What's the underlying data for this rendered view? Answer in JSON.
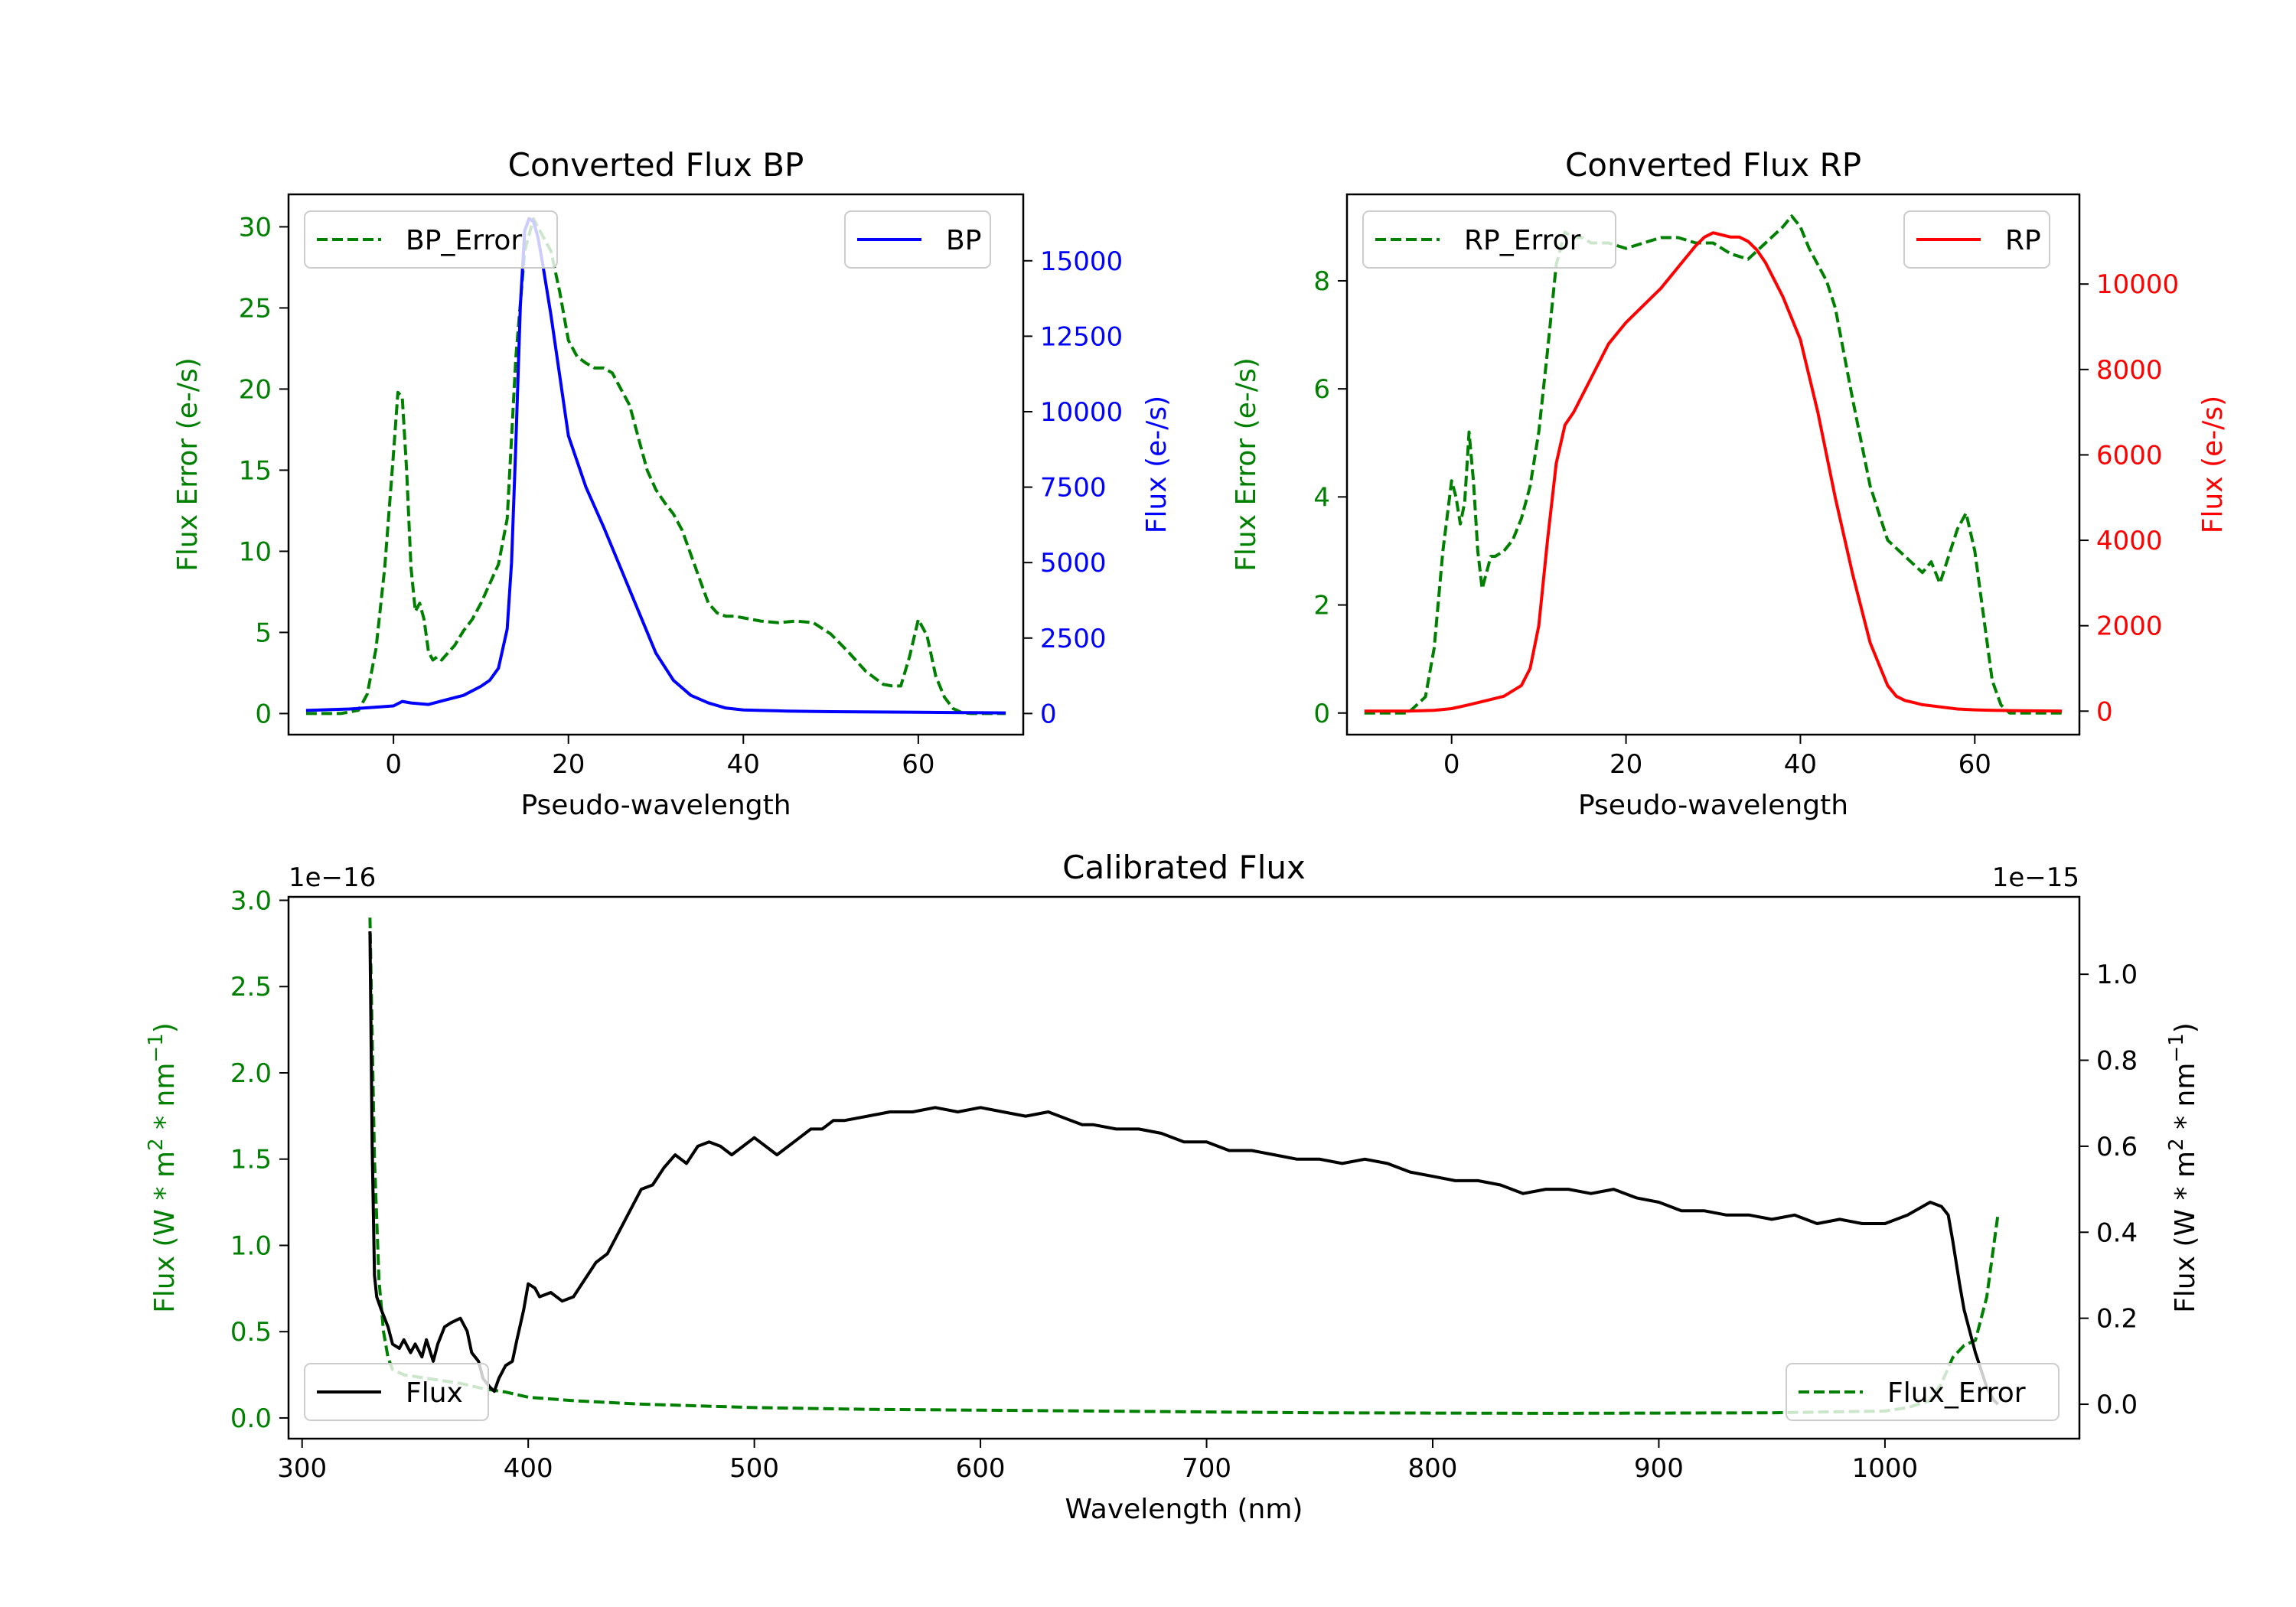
{
  "chart_data": [
    {
      "id": "bp",
      "type": "line",
      "title": "Converted Flux BP",
      "xlabel": "Pseudo-wavelength",
      "ylabel_left": "Flux Error (e-/s)",
      "ylabel_right": "Flux (e-/s)",
      "xlim": [
        -12,
        72
      ],
      "ylim_left": [
        -1.3,
        32
      ],
      "ylim_right": [
        -700,
        17200
      ],
      "xticks": [
        "0",
        "20",
        "40",
        "60"
      ],
      "yticks_left": [
        "0",
        "5",
        "10",
        "15",
        "20",
        "25",
        "30"
      ],
      "yticks_right": [
        "0",
        "2500",
        "5000",
        "7500",
        "10000",
        "12500",
        "15000"
      ],
      "left_color": "#008000",
      "right_color": "#0000ff",
      "series": [
        {
          "name": "BP_Error",
          "axis": "left",
          "style": "dashed",
          "color": "#008000",
          "x": [
            -10,
            -6,
            -4,
            -3,
            -2,
            -1,
            0,
            0.5,
            1,
            1.5,
            2,
            2.5,
            3,
            3.5,
            4,
            4.5,
            5,
            5.5,
            6,
            7,
            8,
            9,
            10,
            11,
            12,
            13,
            14,
            15,
            16,
            17,
            18,
            19,
            20,
            21,
            22,
            23,
            24,
            25,
            26,
            27,
            28,
            29,
            30,
            31,
            32,
            33,
            34,
            35,
            36,
            37,
            38,
            39,
            40,
            42,
            44,
            46,
            48,
            50,
            52,
            54,
            55,
            56,
            57,
            58,
            59,
            60,
            61,
            62,
            63,
            64,
            65,
            66,
            67,
            68,
            69,
            70
          ],
          "y": [
            0,
            0,
            0.2,
            1.2,
            4,
            9,
            16,
            19.8,
            19.5,
            15,
            9,
            6.3,
            6.8,
            5.8,
            3.8,
            3.3,
            3.5,
            3.3,
            3.6,
            4.2,
            5.1,
            5.8,
            6.8,
            8,
            9.2,
            12,
            22,
            28.5,
            30.5,
            29.5,
            28.5,
            26,
            23,
            22,
            21.6,
            21.3,
            21.3,
            21,
            20,
            19,
            17,
            15,
            13.8,
            13,
            12.3,
            11.3,
            9.8,
            8.3,
            6.8,
            6.2,
            6.0,
            6.0,
            5.9,
            5.7,
            5.6,
            5.7,
            5.6,
            4.9,
            3.8,
            2.6,
            2.2,
            1.8,
            1.7,
            1.7,
            3.5,
            5.8,
            4.8,
            2.3,
            1.0,
            0.3,
            0.05,
            0,
            0,
            0,
            0,
            0
          ]
        },
        {
          "name": "BP",
          "axis": "right",
          "style": "solid",
          "color": "#0000ff",
          "x": [
            -10,
            -5,
            0,
            1,
            2,
            4,
            6,
            8,
            10,
            11,
            12,
            13,
            13.5,
            14,
            14.5,
            15,
            15.5,
            16,
            16.5,
            17,
            18,
            19,
            20,
            22,
            24,
            26,
            28,
            30,
            32,
            34,
            36,
            38,
            40,
            42,
            45,
            50,
            55,
            60,
            65,
            70
          ],
          "y": [
            100,
            150,
            250,
            400,
            350,
            300,
            450,
            600,
            900,
            1100,
            1500,
            2800,
            5000,
            9000,
            13500,
            16000,
            16400,
            16300,
            15800,
            15000,
            13200,
            11200,
            9200,
            7500,
            6200,
            4800,
            3400,
            2000,
            1100,
            600,
            350,
            180,
            120,
            100,
            80,
            60,
            50,
            40,
            30,
            20
          ]
        }
      ]
    },
    {
      "id": "rp",
      "type": "line",
      "title": "Converted Flux RP",
      "xlabel": "Pseudo-wavelength",
      "ylabel_left": "Flux Error (e-/s)",
      "ylabel_right": "Flux (e-/s)",
      "xlim": [
        -12,
        72
      ],
      "ylim_left": [
        -0.4,
        9.6
      ],
      "ylim_right": [
        -550,
        12100
      ],
      "xticks": [
        "0",
        "20",
        "40",
        "60"
      ],
      "yticks_left": [
        "0",
        "2",
        "4",
        "6",
        "8"
      ],
      "yticks_right": [
        "0",
        "2000",
        "4000",
        "6000",
        "8000",
        "10000"
      ],
      "left_color": "#008000",
      "right_color": "#ff0000",
      "series": [
        {
          "name": "RP_Error",
          "axis": "left",
          "style": "dashed",
          "color": "#008000",
          "x": [
            -10,
            -5,
            -3,
            -2,
            -1,
            0,
            0.5,
            1,
            1.5,
            2,
            2.5,
            3,
            3.5,
            4,
            4.5,
            5,
            6,
            7,
            8,
            9,
            10,
            11,
            12,
            13,
            14,
            15,
            16,
            18,
            20,
            22,
            24,
            26,
            28,
            30,
            32,
            34,
            36,
            38,
            39,
            40,
            41,
            42,
            43,
            44,
            46,
            48,
            50,
            52,
            54,
            55,
            56,
            57,
            58,
            59,
            60,
            61,
            62,
            63,
            64,
            65,
            66,
            70
          ],
          "y": [
            0,
            0,
            0.3,
            1.2,
            3,
            4.3,
            4.0,
            3.5,
            3.9,
            5.2,
            4.3,
            3.0,
            2.3,
            2.6,
            2.9,
            2.9,
            3.0,
            3.2,
            3.6,
            4.2,
            5.2,
            6.7,
            8.3,
            8.9,
            8.8,
            8.8,
            8.7,
            8.7,
            8.6,
            8.7,
            8.8,
            8.8,
            8.7,
            8.7,
            8.5,
            8.4,
            8.7,
            9.0,
            9.2,
            9.0,
            8.6,
            8.3,
            8.0,
            7.5,
            5.8,
            4.2,
            3.2,
            2.9,
            2.6,
            2.8,
            2.4,
            2.9,
            3.4,
            3.7,
            3.0,
            1.8,
            0.6,
            0.15,
            0,
            0,
            0,
            0
          ]
        },
        {
          "name": "RP",
          "axis": "right",
          "style": "solid",
          "color": "#ff0000",
          "x": [
            -10,
            -5,
            -2,
            0,
            2,
            4,
            6,
            8,
            9,
            10,
            11,
            12,
            13,
            14,
            15,
            16,
            17,
            18,
            20,
            22,
            24,
            26,
            28,
            29,
            30,
            31,
            32,
            33,
            34,
            35,
            36,
            38,
            40,
            42,
            44,
            46,
            48,
            50,
            51,
            52,
            53,
            54,
            56,
            58,
            60,
            62,
            65,
            70
          ],
          "y": [
            0,
            0,
            20,
            60,
            150,
            250,
            350,
            600,
            1000,
            2000,
            4000,
            5800,
            6700,
            7000,
            7400,
            7800,
            8200,
            8600,
            9100,
            9500,
            9900,
            10400,
            10900,
            11100,
            11200,
            11150,
            11100,
            11100,
            11000,
            10800,
            10500,
            9700,
            8700,
            7000,
            5000,
            3200,
            1600,
            600,
            350,
            250,
            200,
            150,
            100,
            50,
            30,
            20,
            10,
            0
          ]
        }
      ]
    },
    {
      "id": "calibrated",
      "type": "line",
      "title": "Calibrated Flux",
      "xlabel": "Wavelength (nm)",
      "ylabel_left": "Flux (W * m$^2$ * nm$^{-1}$)",
      "ylabel_right": "Flux (W * m$^2$ * nm$^{-1}$)",
      "offset_left": "1e−16",
      "offset_right": "1e−15",
      "xlim": [
        294,
        1086
      ],
      "ylim_left": [
        -0.12,
        3.02
      ],
      "ylim_right": [
        -0.08,
        1.18
      ],
      "xticks": [
        "300",
        "400",
        "500",
        "600",
        "700",
        "800",
        "900",
        "1000"
      ],
      "yticks_left": [
        "0.0",
        "0.5",
        "1.0",
        "1.5",
        "2.0",
        "2.5",
        "3.0"
      ],
      "yticks_right": [
        "0.0",
        "0.2",
        "0.4",
        "0.6",
        "0.8",
        "1.0"
      ],
      "left_color": "#008000",
      "right_color": "#000000",
      "series": [
        {
          "name": "Flux_Error",
          "axis": "left",
          "style": "dashed",
          "color": "#008000",
          "x": [
            330,
            332,
            334,
            336,
            338,
            340,
            345,
            350,
            355,
            360,
            370,
            380,
            390,
            400,
            420,
            450,
            500,
            550,
            600,
            650,
            700,
            750,
            800,
            850,
            900,
            950,
            1000,
            1010,
            1020,
            1025,
            1030,
            1035,
            1040,
            1045,
            1050
          ],
          "y": [
            2.9,
            1.5,
            0.8,
            0.5,
            0.35,
            0.28,
            0.25,
            0.24,
            0.23,
            0.22,
            0.2,
            0.17,
            0.15,
            0.12,
            0.1,
            0.08,
            0.06,
            0.05,
            0.045,
            0.04,
            0.035,
            0.03,
            0.028,
            0.027,
            0.028,
            0.03,
            0.04,
            0.06,
            0.1,
            0.2,
            0.35,
            0.42,
            0.45,
            0.7,
            1.18
          ]
        },
        {
          "name": "Flux",
          "axis": "right",
          "style": "solid",
          "color": "#000000",
          "x": [
            330,
            331,
            332,
            333,
            335,
            338,
            340,
            343,
            345,
            348,
            350,
            353,
            355,
            358,
            360,
            363,
            366,
            370,
            373,
            375,
            378,
            380,
            383,
            385,
            387,
            390,
            393,
            395,
            398,
            400,
            403,
            405,
            410,
            415,
            420,
            425,
            430,
            435,
            440,
            445,
            450,
            455,
            460,
            465,
            470,
            475,
            480,
            485,
            490,
            495,
            500,
            505,
            510,
            515,
            520,
            525,
            530,
            535,
            540,
            550,
            560,
            570,
            580,
            590,
            600,
            610,
            620,
            630,
            640,
            645,
            650,
            660,
            670,
            680,
            690,
            700,
            710,
            720,
            730,
            740,
            750,
            760,
            770,
            780,
            790,
            800,
            810,
            820,
            830,
            840,
            850,
            860,
            870,
            880,
            890,
            900,
            910,
            920,
            930,
            940,
            950,
            960,
            970,
            980,
            990,
            1000,
            1010,
            1020,
            1025,
            1028,
            1030,
            1033,
            1035,
            1040,
            1045,
            1048,
            1050
          ],
          "y": [
            1.1,
            0.6,
            0.3,
            0.25,
            0.22,
            0.18,
            0.14,
            0.13,
            0.15,
            0.12,
            0.14,
            0.11,
            0.15,
            0.1,
            0.14,
            0.18,
            0.19,
            0.2,
            0.17,
            0.12,
            0.1,
            0.06,
            0.04,
            0.03,
            0.06,
            0.09,
            0.1,
            0.15,
            0.22,
            0.28,
            0.27,
            0.25,
            0.26,
            0.24,
            0.25,
            0.29,
            0.33,
            0.35,
            0.4,
            0.45,
            0.5,
            0.51,
            0.55,
            0.58,
            0.56,
            0.6,
            0.61,
            0.6,
            0.58,
            0.6,
            0.62,
            0.6,
            0.58,
            0.6,
            0.62,
            0.64,
            0.64,
            0.66,
            0.66,
            0.67,
            0.68,
            0.68,
            0.69,
            0.68,
            0.69,
            0.68,
            0.67,
            0.68,
            0.66,
            0.65,
            0.65,
            0.64,
            0.64,
            0.63,
            0.61,
            0.61,
            0.59,
            0.59,
            0.58,
            0.57,
            0.57,
            0.56,
            0.57,
            0.56,
            0.54,
            0.53,
            0.52,
            0.52,
            0.51,
            0.49,
            0.5,
            0.5,
            0.49,
            0.5,
            0.48,
            0.47,
            0.45,
            0.45,
            0.44,
            0.44,
            0.43,
            0.44,
            0.42,
            0.43,
            0.42,
            0.42,
            0.44,
            0.47,
            0.46,
            0.44,
            0.38,
            0.28,
            0.22,
            0.12,
            0.04,
            0.01,
            0.0
          ]
        }
      ]
    }
  ]
}
